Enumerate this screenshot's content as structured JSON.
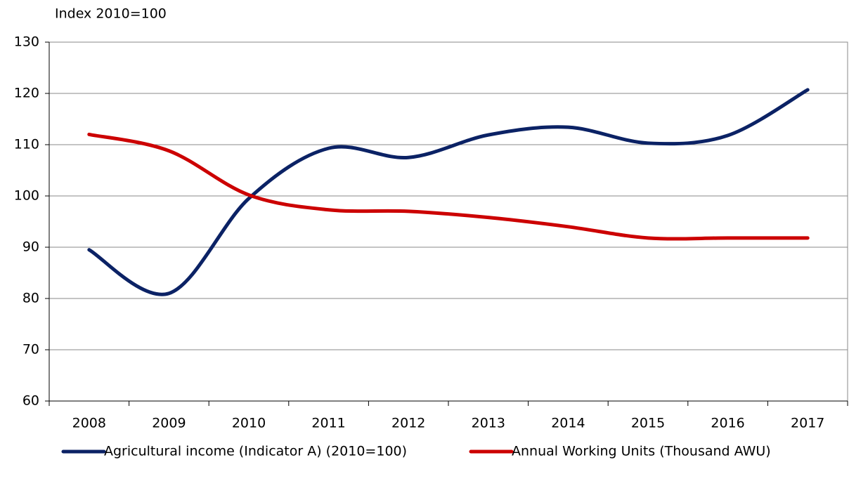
{
  "chart_data": {
    "type": "line",
    "title": "Index 2010=100",
    "categories": [
      "2008",
      "2009",
      "2010",
      "2011",
      "2012",
      "2013",
      "2014",
      "2015",
      "2016",
      "2017"
    ],
    "series": [
      {
        "name": "Agricultural income (Indicator A) (2010=100)",
        "color": "#0b2265",
        "values": [
          89.5,
          81,
          99.5,
          109.3,
          107.5,
          111.9,
          113.4,
          110.3,
          111.8,
          120.7
        ]
      },
      {
        "name": "Annual Working Units (Thousand AWU)",
        "color": "#cc0000",
        "values": [
          112,
          108.8,
          100.2,
          97.3,
          97,
          95.8,
          94,
          91.8,
          91.8,
          91.8
        ]
      }
    ],
    "ylim": [
      60,
      130
    ],
    "yticks": [
      60,
      70,
      80,
      90,
      100,
      110,
      120,
      130
    ],
    "grid": true
  }
}
